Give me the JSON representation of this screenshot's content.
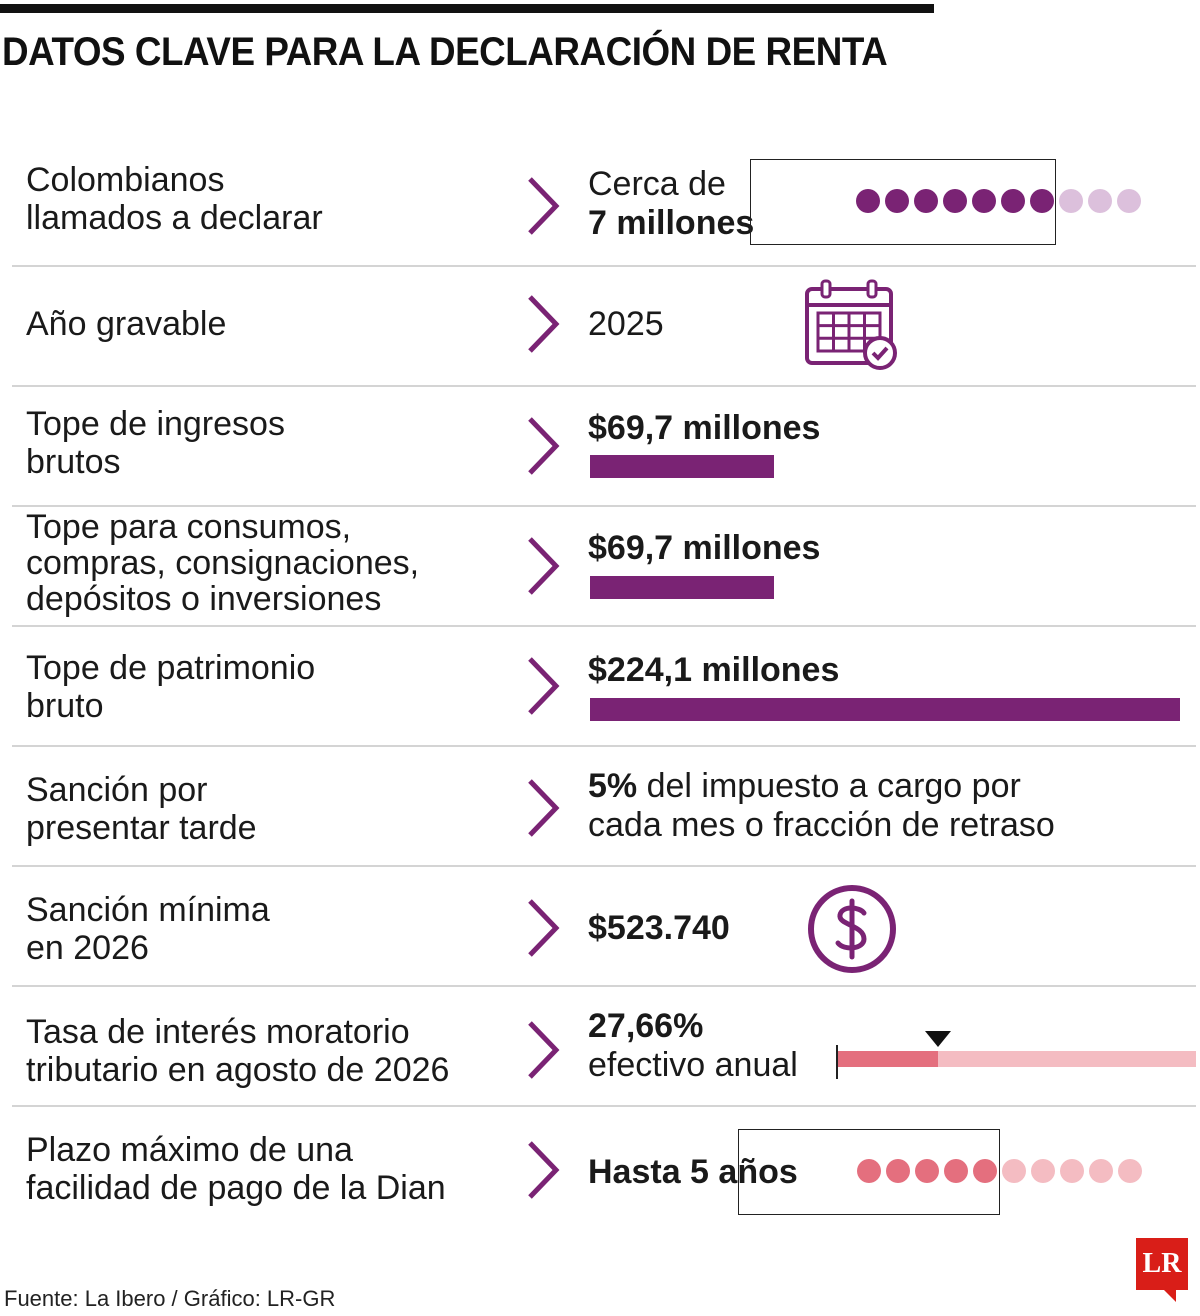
{
  "title": "DATOS CLAVE PARA LA DECLARACIÓN DE RENTA",
  "colors": {
    "purple": "#7a2374",
    "purple_light": "#dcc0dc",
    "pink": "#e46f7e",
    "pink_light": "#f4bcc2"
  },
  "rows": [
    {
      "label": "Colombianos\nllamados a declarar",
      "value_pre": "Cerca de",
      "value_bold": "7 millones",
      "dots_filled": 7,
      "dots_total": 10
    },
    {
      "label": "Año gravable",
      "value": "2025",
      "icon": "calendar-check-icon"
    },
    {
      "label": "Tope de ingresos\nbrutos",
      "value_bold": "$69,7 millones",
      "amount": 69.7,
      "max_amount": 224.1
    },
    {
      "label": "Tope para consumos,\ncompras, consignaciones,\ndepósitos o inversiones",
      "value_bold": "$69,7 millones",
      "amount": 69.7,
      "max_amount": 224.1
    },
    {
      "label": "Tope de patrimonio\nbruto",
      "value_bold": "$224,1 millones",
      "amount": 224.1,
      "max_amount": 224.1
    },
    {
      "label": "Sanción por\npresentar tarde",
      "value_bold": "5%",
      "value_rest": " del impuesto a cargo por",
      "value_line2": "cada mes o fracción de retraso"
    },
    {
      "label": "Sanción mínima\nen 2026",
      "value_bold": "$523.740",
      "icon": "dollar-coin-icon"
    },
    {
      "label": "Tasa de interés moratorio\ntributario en agosto de 2026",
      "value_bold": "27,66%",
      "value_line2": "efectivo anual",
      "rate_fraction": 0.28
    },
    {
      "label": "Plazo máximo de una\nfacilidad de pago de la Dian",
      "value_bold": "Hasta 5 años",
      "dots_filled": 5,
      "dots_total": 10
    }
  ],
  "source": "Fuente: La Ibero / Gráfico: LR-GR",
  "logo": "LR"
}
